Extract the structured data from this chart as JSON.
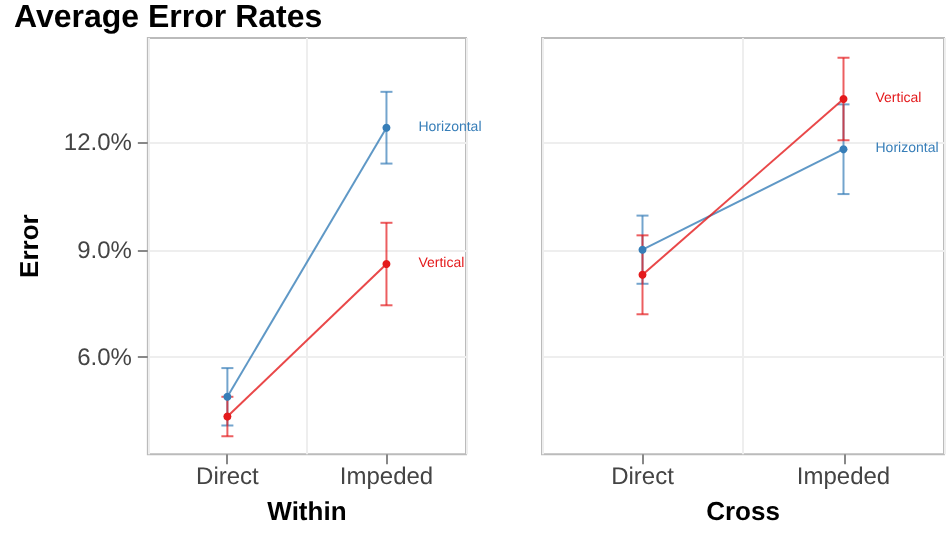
{
  "chart_data": [
    {
      "type": "line",
      "title": "Average Error Rates",
      "xlabel": "Within",
      "ylabel": "Error",
      "categories": [
        "Direct",
        "Impeded"
      ],
      "series": [
        {
          "name": "Horizontal",
          "color": "#377eb8",
          "values": [
            4.9,
            12.4
          ],
          "errors": [
            0.8,
            1.0
          ]
        },
        {
          "name": "Vertical",
          "color": "#e41a1c",
          "values": [
            4.35,
            8.6
          ],
          "errors": [
            0.55,
            1.15
          ]
        }
      ],
      "ylim": [
        3.3,
        14.9
      ],
      "yticks": [
        {
          "value": 6,
          "label": "6.0%"
        },
        {
          "value": 9,
          "label": "9.0%"
        },
        {
          "value": 12,
          "label": "12.0%"
        }
      ],
      "grid": true,
      "legend": false,
      "marker": "circle"
    },
    {
      "type": "line",
      "xlabel": "Cross",
      "categories": [
        "Direct",
        "Impeded"
      ],
      "series": [
        {
          "name": "Horizontal",
          "color": "#377eb8",
          "values": [
            9.0,
            11.8
          ],
          "errors": [
            0.95,
            1.25
          ]
        },
        {
          "name": "Vertical",
          "color": "#e41a1c",
          "values": [
            8.3,
            13.2
          ],
          "errors": [
            1.1,
            1.15
          ]
        }
      ],
      "ylim": [
        3.3,
        14.9
      ],
      "yticks": [
        6,
        9,
        12
      ],
      "grid": true,
      "legend": false,
      "marker": "circle",
      "tick_labels": "x"
    }
  ]
}
